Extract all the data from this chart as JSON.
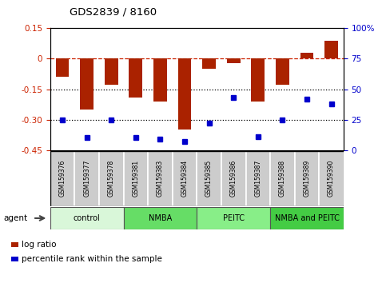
{
  "title": "GDS2839 / 8160",
  "samples": [
    "GSM159376",
    "GSM159377",
    "GSM159378",
    "GSM159381",
    "GSM159383",
    "GSM159384",
    "GSM159385",
    "GSM159386",
    "GSM159387",
    "GSM159388",
    "GSM159389",
    "GSM159390"
  ],
  "log_ratio": [
    -0.09,
    -0.25,
    -0.13,
    -0.19,
    -0.21,
    -0.35,
    -0.05,
    -0.02,
    -0.21,
    -0.13,
    0.03,
    0.09
  ],
  "percentile": [
    25,
    10,
    25,
    10,
    9,
    7,
    22,
    43,
    11,
    25,
    42,
    38
  ],
  "groups": [
    {
      "label": "control",
      "start": 0,
      "end": 3,
      "color": "#d9f7d9"
    },
    {
      "label": "NMBA",
      "start": 3,
      "end": 6,
      "color": "#66dd66"
    },
    {
      "label": "PEITC",
      "start": 6,
      "end": 9,
      "color": "#88ee88"
    },
    {
      "label": "NMBA and PEITC",
      "start": 9,
      "end": 12,
      "color": "#44cc44"
    }
  ],
  "bar_color": "#aa2200",
  "dot_color": "#0000cc",
  "ylim_left": [
    -0.45,
    0.15
  ],
  "ylim_right": [
    0,
    100
  ],
  "yticks_left": [
    0.15,
    0.0,
    -0.15,
    -0.3,
    -0.45
  ],
  "ytick_labels_left": [
    "0.15",
    "0",
    "-0.15",
    "-0.30",
    "-0.45"
  ],
  "yticks_right": [
    100,
    75,
    50,
    25,
    0
  ],
  "ytick_labels_right": [
    "100%",
    "75",
    "50",
    "25",
    "0"
  ],
  "hline_y": [
    0.0,
    -0.15,
    -0.3
  ],
  "hline_styles": [
    "--",
    ":",
    ":"
  ],
  "hline_colors": [
    "#cc2200",
    "black",
    "black"
  ],
  "agent_label": "agent",
  "legend_items": [
    {
      "label": "log ratio",
      "color": "#aa2200"
    },
    {
      "label": "percentile rank within the sample",
      "color": "#0000cc"
    }
  ],
  "sample_bg_color": "#cccccc",
  "sample_border_color": "#ffffff",
  "group_border_color": "#555555"
}
